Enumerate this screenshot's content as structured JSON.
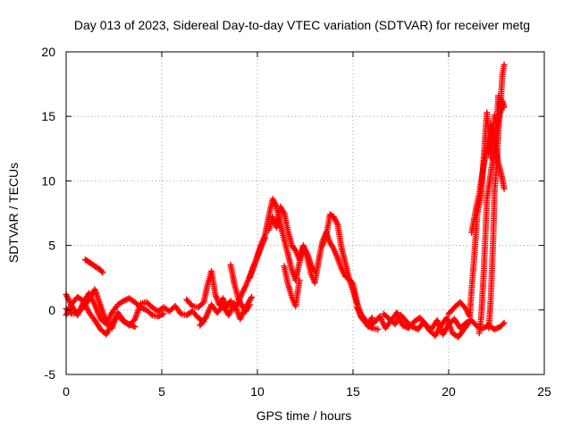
{
  "chart_data": {
    "type": "scatter",
    "title": "Day 013 of 2023, Sidereal Day-to-day VTEC variation (SDTVAR) for receiver metg",
    "xlabel": "GPS time / hours",
    "ylabel": "SDTVAR / TECUs",
    "xlim": [
      0,
      25
    ],
    "ylim": [
      -5,
      20
    ],
    "grid": true,
    "marker": "+",
    "x_ticks": [
      "0",
      "5",
      "10",
      "15",
      "20",
      "25"
    ],
    "y_ticks": [
      "-5",
      "0",
      "5",
      "10",
      "15",
      "20"
    ],
    "series": [
      {
        "name": "SDTVAR",
        "color": "#ff0000",
        "segments": [
          {
            "x": [
              0.0,
              0.3,
              0.6,
              0.9,
              1.2,
              1.5,
              1.8,
              2.1,
              2.4,
              2.7,
              3.0,
              3.3,
              3.6,
              3.9,
              4.2,
              4.5,
              4.8,
              5.1,
              5.4,
              5.7,
              6.0,
              6.3,
              6.6,
              6.9,
              7.2
            ],
            "y": [
              0.1,
              -0.3,
              -0.2,
              0.2,
              0.8,
              1.6,
              0.3,
              -0.9,
              -1.4,
              -0.2,
              -0.8,
              -1.2,
              -0.7,
              0.5,
              0.6,
              0.2,
              -0.1,
              0.2,
              -0.1,
              0.3,
              -0.3,
              -0.4,
              -0.1,
              -0.6,
              -0.9
            ]
          },
          {
            "x": [
              0.0,
              0.3,
              0.6,
              0.9,
              1.2,
              1.5,
              1.8,
              2.1,
              2.4,
              2.7,
              3.0,
              3.3,
              3.6,
              3.9,
              4.2,
              4.5,
              4.8,
              5.1
            ],
            "y": [
              1.2,
              0.3,
              -0.4,
              0.6,
              1.3,
              0.4,
              -0.7,
              -1.1,
              -0.2,
              0.4,
              0.7,
              0.9,
              0.6,
              0.2,
              0.0,
              -0.4,
              -0.5,
              -0.3
            ]
          },
          {
            "x": [
              0.0,
              0.3,
              0.6,
              0.9,
              1.2,
              1.5,
              1.8,
              2.1,
              2.4,
              2.7,
              3.0,
              3.3,
              3.6
            ],
            "y": [
              -0.4,
              0.5,
              1.0,
              0.7,
              -0.2,
              -0.8,
              -1.5,
              -1.9,
              -1.0,
              -0.4,
              -0.9,
              -1.1,
              -1.3
            ]
          },
          {
            "x": [
              1.0,
              1.2,
              1.4,
              1.6,
              1.8,
              1.9
            ],
            "y": [
              3.9,
              3.7,
              3.5,
              3.3,
              3.1,
              2.9
            ]
          },
          {
            "x": [
              6.3,
              6.6,
              6.9,
              7.2,
              7.4,
              7.6,
              7.8,
              8.0,
              8.2,
              8.4,
              8.6,
              8.8,
              9.0,
              9.2,
              9.4,
              9.6,
              9.8,
              10.0,
              10.2,
              10.4
            ],
            "y": [
              0.8,
              0.3,
              0.2,
              0.6,
              2.0,
              3.0,
              1.2,
              0.4,
              0.9,
              0.2,
              0.7,
              0.1,
              0.6,
              1.3,
              1.9,
              2.6,
              3.4,
              4.1,
              4.9,
              5.6
            ]
          },
          {
            "x": [
              7.0,
              7.3,
              7.6,
              7.9,
              8.2,
              8.5,
              8.8,
              9.1,
              9.4,
              9.7
            ],
            "y": [
              -1.2,
              -0.6,
              0.4,
              -0.2,
              0.3,
              -0.4,
              0.5,
              -0.7,
              0.2,
              1.0
            ]
          },
          {
            "x": [
              8.6,
              8.8,
              9.0,
              9.2,
              9.4,
              9.6
            ],
            "y": [
              3.5,
              2.0,
              0.9,
              0.3,
              -0.1,
              0.4
            ]
          },
          {
            "x": [
              9.6,
              9.8,
              10.0,
              10.2,
              10.4,
              10.6,
              10.8,
              11.0,
              11.2,
              11.4,
              11.6,
              11.8,
              12.0,
              12.2,
              12.4,
              12.6,
              12.8,
              13.0,
              13.2,
              13.4,
              13.6,
              13.8,
              14.0,
              14.2,
              14.4,
              14.6,
              14.8,
              15.0,
              15.2,
              15.4,
              15.6,
              15.8,
              16.0
            ],
            "y": [
              2.5,
              3.3,
              4.2,
              5.1,
              5.8,
              7.3,
              8.6,
              8.0,
              6.6,
              5.5,
              4.3,
              3.1,
              2.3,
              3.7,
              5.0,
              4.1,
              2.8,
              2.1,
              3.8,
              5.3,
              6.0,
              5.2,
              4.7,
              4.0,
              3.2,
              2.6,
              2.4,
              2.0,
              0.6,
              -0.3,
              -0.7,
              -1.0,
              -0.6
            ]
          },
          {
            "x": [
              10.6,
              10.8,
              11.0,
              11.2,
              11.4,
              11.6,
              11.8,
              12.0,
              12.2,
              12.4,
              12.6,
              12.8,
              13.0
            ],
            "y": [
              6.2,
              7.2,
              6.4,
              8.0,
              7.5,
              6.1,
              5.0,
              4.6,
              3.9,
              4.9,
              4.4,
              3.5,
              3.0
            ]
          },
          {
            "x": [
              11.4,
              11.6,
              11.8,
              12.0,
              12.2
            ],
            "y": [
              3.4,
              2.0,
              1.0,
              0.3,
              2.3
            ]
          },
          {
            "x": [
              13.4,
              13.6,
              13.8,
              14.0,
              14.2,
              14.4,
              14.6,
              14.8,
              15.0,
              15.2,
              15.4,
              15.6,
              15.8,
              16.0,
              16.3
            ],
            "y": [
              5.0,
              5.8,
              7.4,
              7.2,
              6.6,
              4.8,
              3.6,
              2.4,
              1.5,
              0.5,
              -0.5,
              -0.9,
              -1.2,
              -1.4,
              -1.5
            ]
          },
          {
            "x": [
              15.2,
              15.5,
              15.8,
              16.1,
              16.4,
              16.7,
              17.0,
              17.3,
              17.6,
              17.9,
              18.2,
              18.5,
              18.8,
              19.1,
              19.4,
              19.7,
              20.0,
              20.3,
              20.6,
              20.9,
              21.2,
              21.5,
              21.8,
              22.1,
              22.4,
              22.7,
              22.9
            ],
            "y": [
              0.2,
              -0.6,
              -1.3,
              -1.0,
              -0.5,
              -1.4,
              -0.8,
              -0.2,
              -1.2,
              -1.4,
              -0.9,
              -0.6,
              -1.2,
              -1.5,
              -0.8,
              -1.9,
              -1.1,
              -0.7,
              -1.4,
              -1.0,
              -0.8,
              -1.3,
              -1.4,
              -1.2,
              -1.5,
              -1.3,
              -1.0
            ]
          },
          {
            "x": [
              16.6,
              16.9,
              17.2,
              17.5,
              17.8,
              18.1,
              18.4,
              18.7,
              19.0,
              19.3,
              19.6,
              19.9,
              20.2,
              20.5,
              20.8,
              21.1
            ],
            "y": [
              -0.3,
              -0.7,
              -1.1,
              -0.4,
              -0.9,
              -1.3,
              -1.5,
              -0.9,
              -1.6,
              -2.0,
              -1.2,
              -0.6,
              -1.8,
              -2.1,
              -1.5,
              -0.9
            ]
          },
          {
            "x": [
              20.0,
              20.3,
              20.6,
              20.9,
              21.1,
              21.2,
              21.3,
              21.5,
              21.7,
              21.9,
              22.0,
              22.1,
              22.2,
              22.3,
              22.4,
              22.5,
              22.6,
              22.7,
              22.8,
              22.9
            ],
            "y": [
              -0.3,
              0.2,
              0.6,
              0.1,
              -0.5,
              1.6,
              3.4,
              7.5,
              8.9,
              13.2,
              15.3,
              13.5,
              11.8,
              13.9,
              15.1,
              14.2,
              16.6,
              15.3,
              18.1,
              19.0
            ]
          },
          {
            "x": [
              21.2,
              21.4,
              21.6,
              21.8,
              22.0,
              22.2,
              22.4,
              22.6,
              22.8,
              22.9
            ],
            "y": [
              6.0,
              7.6,
              9.0,
              10.9,
              12.6,
              14.4,
              13.0,
              11.4,
              10.2,
              9.4
            ]
          },
          {
            "x": [
              21.6,
              21.7,
              21.8,
              21.9,
              22.0,
              22.2,
              22.4,
              22.6,
              22.8,
              22.9
            ],
            "y": [
              -1.8,
              -0.6,
              2.0,
              5.0,
              8.6,
              10.6,
              12.5,
              14.8,
              16.2,
              15.7
            ]
          },
          {
            "x": [
              22.1,
              22.2,
              22.3,
              22.35,
              22.4,
              22.5,
              22.6,
              22.7
            ],
            "y": [
              -1.4,
              0.8,
              4.4,
              6.5,
              9.2,
              11.0,
              13.8,
              16.2
            ]
          }
        ]
      }
    ]
  }
}
